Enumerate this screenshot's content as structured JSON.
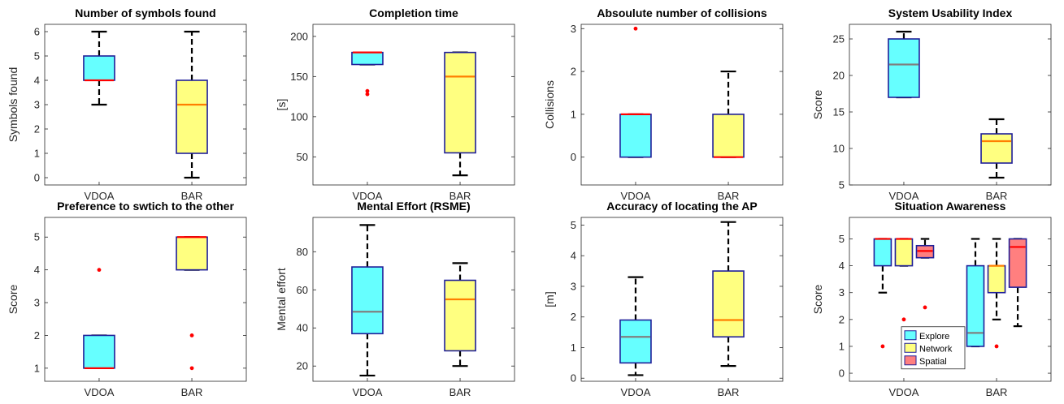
{
  "colors": {
    "Explore": "#66ffff",
    "Network": "#ffff80",
    "Spatial": "#ff7f7f",
    "box_edge": "#1f1f99",
    "outlier": "#ff0000",
    "whisker": "#000000"
  },
  "chart_data": [
    {
      "type": "box",
      "title": "Number of symbols found",
      "ylabel": "Symbols found",
      "categories": [
        "VDOA",
        "BAR"
      ],
      "ylim": [
        -0.3,
        6.3
      ],
      "yticks": [
        0,
        1,
        2,
        3,
        4,
        5,
        6
      ],
      "boxes": [
        {
          "category": "VDOA",
          "series": "Explore",
          "min": 3,
          "q1": 4,
          "median": 4,
          "q3": 5,
          "max": 6,
          "median_color": "#ff0000",
          "outliers": []
        },
        {
          "category": "BAR",
          "series": "Network",
          "min": 0,
          "q1": 1,
          "median": 3,
          "q3": 4,
          "max": 6,
          "median_color": "#ff7f00",
          "outliers": []
        }
      ]
    },
    {
      "type": "box",
      "title": "Completion time",
      "ylabel": "[s]",
      "categories": [
        "VDOA",
        "BAR"
      ],
      "ylim": [
        15,
        215
      ],
      "yticks": [
        50,
        100,
        150,
        200
      ],
      "boxes": [
        {
          "category": "VDOA",
          "series": "Explore",
          "min": 165,
          "q1": 165,
          "median": 180,
          "q3": 180,
          "max": 180,
          "median_color": "#ff0000",
          "outliers": [
            132,
            128
          ]
        },
        {
          "category": "BAR",
          "series": "Network",
          "min": 27,
          "q1": 55,
          "median": 150,
          "q3": 180,
          "max": 180,
          "median_color": "#ff7f00",
          "outliers": []
        }
      ]
    },
    {
      "type": "box",
      "title": "Absoulute number of collisions",
      "ylabel": "Collisions",
      "categories": [
        "VDOA",
        "BAR"
      ],
      "ylim": [
        -0.65,
        3.1
      ],
      "yticks": [
        0,
        1,
        2,
        3
      ],
      "boxes": [
        {
          "category": "VDOA",
          "series": "Explore",
          "min": 0,
          "q1": 0,
          "median": 1,
          "q3": 1,
          "max": 1,
          "median_color": "#ff0000",
          "outliers": [
            3
          ]
        },
        {
          "category": "BAR",
          "series": "Network",
          "min": 0,
          "q1": 0,
          "median": 0,
          "q3": 1,
          "max": 2,
          "median_color": "#ff0000",
          "outliers": []
        }
      ]
    },
    {
      "type": "box",
      "title": "System Usability Index",
      "ylabel": "Score",
      "categories": [
        "VDOA",
        "BAR"
      ],
      "ylim": [
        5,
        27
      ],
      "yticks": [
        5,
        10,
        15,
        20,
        25
      ],
      "boxes": [
        {
          "category": "VDOA",
          "series": "Explore",
          "min": 17,
          "q1": 17,
          "median": 21.5,
          "q3": 25,
          "max": 26,
          "median_color": "#808080",
          "outliers": []
        },
        {
          "category": "BAR",
          "series": "Network",
          "min": 6,
          "q1": 8,
          "median": 11,
          "q3": 12,
          "max": 14,
          "median_color": "#ff7f00",
          "outliers": []
        }
      ]
    },
    {
      "type": "box",
      "title": "Preference to swtich to the other",
      "ylabel": "Score",
      "categories": [
        "VDOA",
        "BAR"
      ],
      "ylim": [
        0.6,
        5.6
      ],
      "yticks": [
        1,
        2,
        3,
        4,
        5
      ],
      "boxes": [
        {
          "category": "VDOA",
          "series": "Explore",
          "min": 1,
          "q1": 1,
          "median": 1,
          "q3": 2,
          "max": 2,
          "median_color": "#ff0000",
          "outliers": [
            4
          ]
        },
        {
          "category": "BAR",
          "series": "Network",
          "min": 4,
          "q1": 4,
          "median": 5,
          "q3": 5,
          "max": 5,
          "median_color": "#ff0000",
          "outliers": [
            2,
            1
          ]
        }
      ]
    },
    {
      "type": "box",
      "title": "Mental Effort (RSME)",
      "ylabel": "Mental effort",
      "categories": [
        "VDOA",
        "BAR"
      ],
      "ylim": [
        12,
        98
      ],
      "yticks": [
        20,
        40,
        60,
        80
      ],
      "boxes": [
        {
          "category": "VDOA",
          "series": "Explore",
          "min": 15,
          "q1": 37,
          "median": 48.5,
          "q3": 72,
          "max": 94,
          "median_color": "#808080",
          "outliers": []
        },
        {
          "category": "BAR",
          "series": "Network",
          "min": 20,
          "q1": 28,
          "median": 55,
          "q3": 65,
          "max": 74,
          "median_color": "#ff7f00",
          "outliers": []
        }
      ]
    },
    {
      "type": "box",
      "title": "Accuracy of locating the AP",
      "ylabel": "[m]",
      "categories": [
        "VDOA",
        "BAR"
      ],
      "ylim": [
        -0.1,
        5.25
      ],
      "yticks": [
        0,
        1,
        2,
        3,
        4,
        5
      ],
      "boxes": [
        {
          "category": "VDOA",
          "series": "Explore",
          "min": 0.1,
          "q1": 0.5,
          "median": 1.35,
          "q3": 1.9,
          "max": 3.3,
          "median_color": "#808080",
          "outliers": []
        },
        {
          "category": "BAR",
          "series": "Network",
          "min": 0.4,
          "q1": 1.35,
          "median": 1.9,
          "q3": 3.5,
          "max": 5.1,
          "median_color": "#ff7f00",
          "outliers": []
        }
      ]
    },
    {
      "type": "box",
      "title": "Situation Awareness",
      "ylabel": "Score",
      "categories": [
        "VDOA",
        "BAR"
      ],
      "ylim": [
        -0.3,
        5.8
      ],
      "yticks": [
        0,
        1,
        2,
        3,
        4,
        5
      ],
      "legend": {
        "position": "bottom-left",
        "entries": [
          "Explore",
          "Network",
          "Spatial"
        ]
      },
      "boxes": [
        {
          "category": "VDOA",
          "series": "Explore",
          "min": 3,
          "q1": 4,
          "median": 5,
          "q3": 5,
          "max": 5,
          "median_color": "#ff0000",
          "outliers": [
            1
          ]
        },
        {
          "category": "VDOA",
          "series": "Network",
          "min": 4,
          "q1": 4,
          "median": 5,
          "q3": 5,
          "max": 5,
          "median_color": "#ff0000",
          "outliers": [
            2
          ]
        },
        {
          "category": "VDOA",
          "series": "Spatial",
          "min": 4.3,
          "q1": 4.3,
          "median": 4.55,
          "q3": 4.75,
          "max": 5,
          "median_color": "#ff0000",
          "outliers": [
            2.45
          ]
        },
        {
          "category": "BAR",
          "series": "Explore",
          "min": 1,
          "q1": 1,
          "median": 1.5,
          "q3": 4,
          "max": 5,
          "median_color": "#808080",
          "outliers": []
        },
        {
          "category": "BAR",
          "series": "Network",
          "min": 2,
          "q1": 3,
          "median": 4,
          "q3": 4,
          "max": 5,
          "median_color": "#ff7f00",
          "outliers": [
            1
          ]
        },
        {
          "category": "BAR",
          "series": "Spatial",
          "min": 1.75,
          "q1": 3.2,
          "median": 4.7,
          "q3": 5,
          "max": 5,
          "median_color": "#ff0000",
          "outliers": []
        }
      ]
    }
  ]
}
